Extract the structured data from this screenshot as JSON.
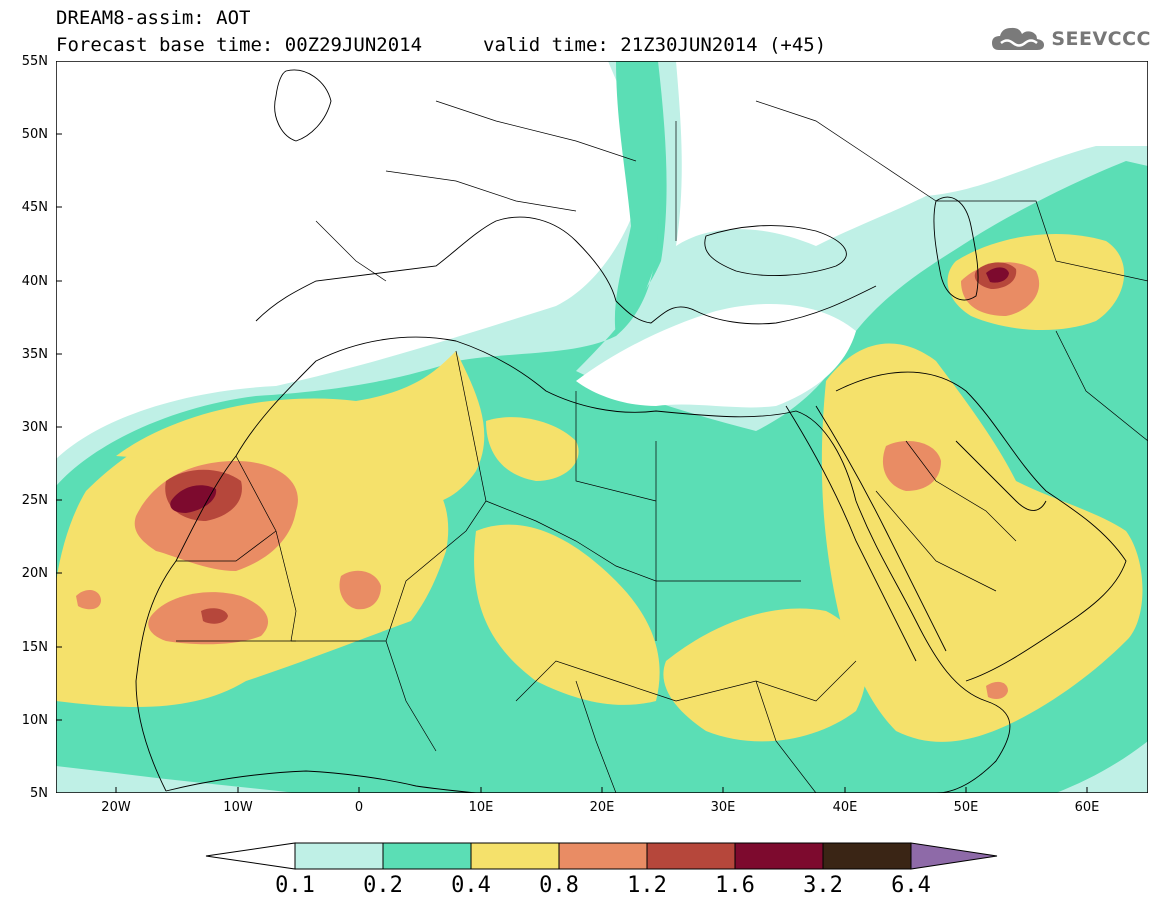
{
  "header": {
    "title_line1": "DREAM8-assim: AOT",
    "title_line2": "Forecast base time: 00Z29JUN2014",
    "valid_time": "valid time: 21Z30JUN2014 (+45)"
  },
  "logo": {
    "text": "SEEVCCC",
    "icon": "cloud-icon"
  },
  "map": {
    "variable": "Aerosol optical thickness (dust)",
    "projection": "lat-lon",
    "lon_range": [
      -25,
      65
    ],
    "lat_range": [
      5,
      55
    ],
    "lat_labels": [
      "55N",
      "50N",
      "45N",
      "40N",
      "35N",
      "30N",
      "25N",
      "20N",
      "15N",
      "10N",
      "5N"
    ],
    "lon_labels": [
      "20W",
      "10W",
      "0",
      "10E",
      "20E",
      "30E",
      "40E",
      "50E",
      "60E"
    ]
  },
  "legend": {
    "labels": [
      "0.1",
      "0.2",
      "0.4",
      "0.8",
      "1.2",
      "1.6",
      "3.2",
      "6.4"
    ],
    "colors": [
      "#ffffff",
      "#bff0e6",
      "#5bdeb5",
      "#f5e16b",
      "#e98c64",
      "#b6473b",
      "#7d0a2e",
      "#3a2515",
      "#8e6aa8"
    ]
  },
  "colors": {
    "c1": "#bff0e6",
    "c2": "#5bdeb5",
    "c3": "#f5e16b",
    "c4": "#e98c64",
    "c5": "#b6473b",
    "c6": "#7d0a2e",
    "border": "#000000"
  }
}
